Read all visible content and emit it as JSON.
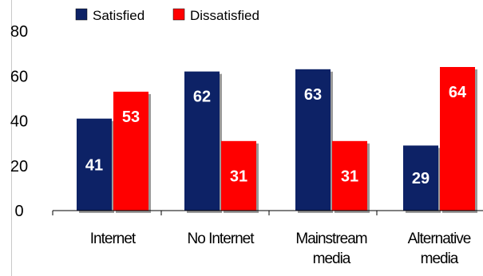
{
  "chart_data": {
    "type": "bar",
    "categories": [
      [
        "Internet"
      ],
      [
        "No Internet"
      ],
      [
        "Mainstream",
        "media"
      ],
      [
        "Alternative",
        "media"
      ]
    ],
    "series": [
      {
        "name": "Satisfied",
        "values": [
          41,
          62,
          63,
          29
        ],
        "color": "#0d2266",
        "label_color": "#ffffff"
      },
      {
        "name": "Dissatisfied",
        "values": [
          53,
          31,
          31,
          64
        ],
        "color": "#ff0000",
        "label_color": "#ffffff"
      }
    ],
    "yticks": [
      "0",
      "20",
      "40",
      "60",
      "80"
    ],
    "ylim": [
      0,
      80
    ],
    "grid": false,
    "legend_position": "top-left"
  }
}
